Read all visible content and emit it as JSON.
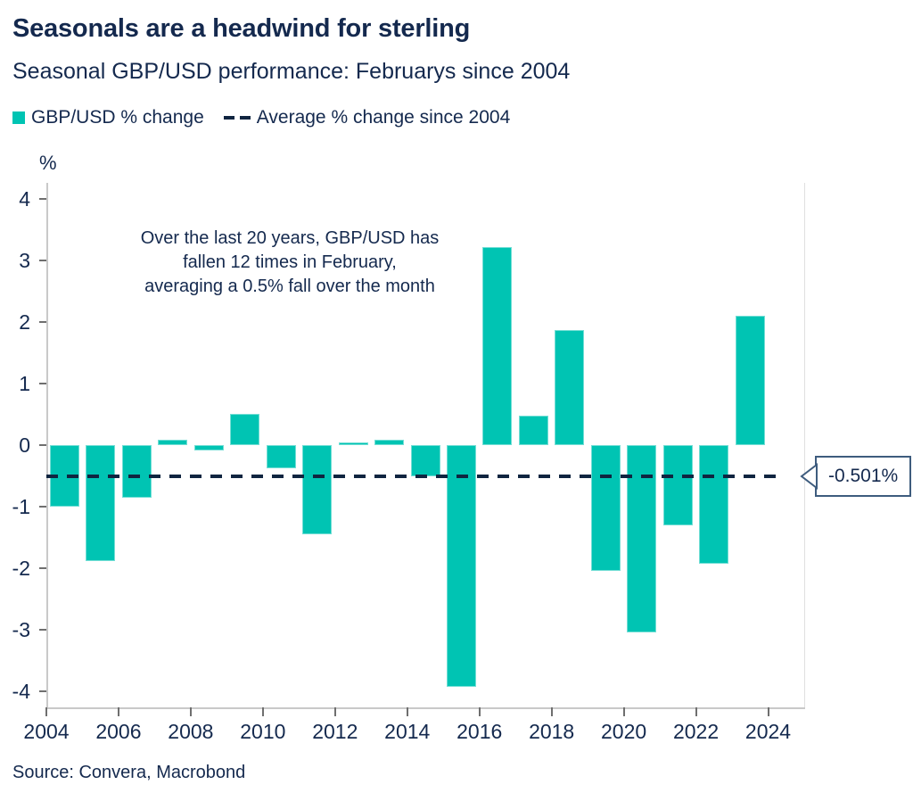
{
  "header": {
    "title": "Seasonals are a headwind for sterling",
    "subtitle": "Seasonal GBP/USD performance: Februarys since 2004"
  },
  "legend": {
    "items": [
      {
        "marker": "teal-swatch",
        "label": "GBP/USD % change",
        "color": "#00C4B3"
      },
      {
        "marker": "navy-dashes",
        "label": "Average % change since 2004",
        "color": "#102540"
      }
    ]
  },
  "annotation": {
    "lines": [
      "Over the last 20 years, GBP/USD has",
      "fallen 12 times in February,",
      "averaging a 0.5% fall over the month"
    ]
  },
  "callout": {
    "label": "-0.501%"
  },
  "source": "Source: Convera, Macrobond",
  "chart_data": {
    "type": "bar",
    "title": "Seasonal GBP/USD performance: Februarys since 2004",
    "ylabel": "%",
    "xlabel": "",
    "series_name": "GBP/USD % change",
    "categories": [
      2004,
      2005,
      2006,
      2007,
      2008,
      2009,
      2010,
      2011,
      2012,
      2013,
      2014,
      2015,
      2016,
      2017,
      2018,
      2019,
      2020,
      2021,
      2022,
      2023
    ],
    "values": [
      -1.0,
      -1.88,
      -0.85,
      0.08,
      -0.08,
      0.5,
      -0.38,
      -1.45,
      0.05,
      0.09,
      -0.5,
      -3.92,
      3.22,
      0.48,
      1.87,
      -2.05,
      -3.05,
      -1.3,
      -1.93,
      2.1
    ],
    "average": {
      "value": -0.501,
      "label": "-0.501%",
      "name": "Average % change since 2004"
    },
    "ylim": [
      -4.26,
      4.26
    ],
    "yticks": [
      4,
      3,
      2,
      1,
      0,
      -1,
      -2,
      -3,
      -4
    ],
    "xticks": [
      2004,
      2006,
      2008,
      2010,
      2012,
      2014,
      2016,
      2018,
      2020,
      2022,
      2024
    ],
    "grid": false,
    "legend_position": "top-left",
    "colors": {
      "bar": "#00C4B3",
      "average_line": "#102540",
      "text": "#14294E",
      "axis": "#C9C9C9"
    }
  }
}
